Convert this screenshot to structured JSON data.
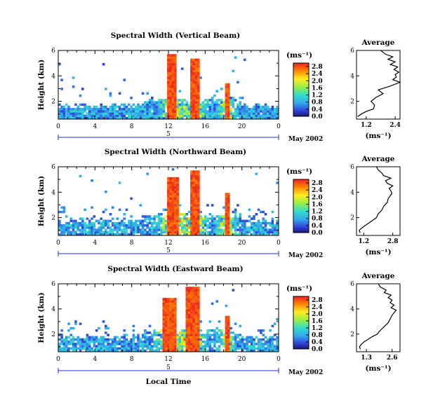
{
  "figure": {
    "xlabel": "Local Time",
    "date_label": "May 2002",
    "day_label": "5",
    "ylabel": "Height (km)",
    "unit_label": "(ms⁻¹)",
    "avg_title": "Average",
    "avg_xlabel": "(ms⁻¹)"
  },
  "chart_data": [
    {
      "type": "heatmap",
      "title": "Spectral Width (Vertical Beam)",
      "xlabel": "Local Time",
      "ylabel": "Height (km)",
      "x_ticks": [
        "0",
        "4",
        "8",
        "12",
        "16",
        "20",
        "0"
      ],
      "y_ticks": [
        "2",
        "4",
        "6"
      ],
      "xlim": [
        0,
        24
      ],
      "ylim": [
        0.6,
        6.0
      ],
      "colorbar": {
        "label": "(ms⁻¹)",
        "ticks": [
          "0.0",
          "0.4",
          "0.8",
          "1.2",
          "1.6",
          "2.0",
          "2.4",
          "2.8"
        ],
        "range": [
          0,
          3.0
        ]
      },
      "regions": [
        {
          "desc": "dense near-ground layer",
          "t": [
            0,
            24
          ],
          "h": [
            0.6,
            1.7
          ],
          "value": 0.8
        },
        {
          "desc": "convective plume",
          "t": [
            12.0,
            13.0
          ],
          "h": [
            0.6,
            5.8
          ],
          "value": 3.0
        },
        {
          "desc": "convective plume",
          "t": [
            14.5,
            15.3
          ],
          "h": [
            0.6,
            5.5
          ],
          "value": 3.0
        },
        {
          "desc": "convective plume",
          "t": [
            18.3,
            18.6
          ],
          "h": [
            0.6,
            3.5
          ],
          "value": 3.0
        }
      ]
    },
    {
      "type": "heatmap",
      "title": "Spectral Width (Northward Beam)",
      "xlabel": "Local Time",
      "ylabel": "Height (km)",
      "x_ticks": [
        "0",
        "4",
        "8",
        "12",
        "16",
        "20",
        "0"
      ],
      "y_ticks": [
        "2",
        "4",
        "6"
      ],
      "xlim": [
        0,
        24
      ],
      "ylim": [
        0.6,
        6.0
      ],
      "colorbar": {
        "label": "(ms⁻¹)",
        "ticks": [
          "0.0",
          "0.4",
          "0.8",
          "1.2",
          "1.6",
          "2.0",
          "2.4",
          "2.8"
        ],
        "range": [
          0,
          3.0
        ]
      },
      "regions": [
        {
          "desc": "boundary layer echoes",
          "t": [
            0,
            24
          ],
          "h": [
            0.6,
            1.8
          ],
          "value": 0.6
        },
        {
          "desc": "convective plume",
          "t": [
            11.8,
            13.2
          ],
          "h": [
            0.6,
            5.3
          ],
          "value": 3.0
        },
        {
          "desc": "convective plume",
          "t": [
            14.3,
            15.5
          ],
          "h": [
            0.6,
            5.9
          ],
          "value": 3.0
        },
        {
          "desc": "convective plume",
          "t": [
            18.2,
            18.6
          ],
          "h": [
            0.6,
            4.0
          ],
          "value": 3.0
        }
      ]
    },
    {
      "type": "heatmap",
      "title": "Spectral Width (Eastward Beam)",
      "xlabel": "Local Time",
      "ylabel": "Height (km)",
      "x_ticks": [
        "0",
        "4",
        "8",
        "12",
        "16",
        "20",
        "0"
      ],
      "y_ticks": [
        "2",
        "4",
        "6"
      ],
      "xlim": [
        0,
        24
      ],
      "ylim": [
        0.6,
        6.0
      ],
      "colorbar": {
        "label": "(ms⁻¹)",
        "ticks": [
          "0.0",
          "0.4",
          "0.8",
          "1.2",
          "1.6",
          "2.0",
          "2.4",
          "2.8"
        ],
        "range": [
          0,
          3.0
        ]
      },
      "regions": [
        {
          "desc": "boundary layer echoes",
          "t": [
            0,
            24
          ],
          "h": [
            0.6,
            1.8
          ],
          "value": 0.6
        },
        {
          "desc": "convective plume",
          "t": [
            11.4,
            12.8
          ],
          "h": [
            0.6,
            5.0
          ],
          "value": 3.0
        },
        {
          "desc": "convective plume",
          "t": [
            13.8,
            15.3
          ],
          "h": [
            0.6,
            5.8
          ],
          "value": 3.0
        },
        {
          "desc": "convective plume",
          "t": [
            18.3,
            18.6
          ],
          "h": [
            0.6,
            3.5
          ],
          "value": 3.0
        }
      ]
    },
    {
      "type": "line",
      "title": "Average",
      "xlabel": "(ms⁻¹)",
      "x_ticks": [
        "1.2",
        "2.4"
      ],
      "y_ticks": [
        "2",
        "4",
        "6"
      ],
      "xlim": [
        0.8,
        2.6
      ],
      "ylim": [
        0.6,
        6.0
      ],
      "x": [
        0.85,
        1.0,
        1.2,
        1.5,
        1.55,
        1.4,
        1.6,
        1.9,
        1.7,
        2.2,
        2.6,
        2.3,
        2.45,
        2.4,
        2.55,
        2.35,
        2.5,
        2.2,
        2.4,
        2.1,
        2.3,
        2.0,
        1.9,
        1.8
      ],
      "y": [
        0.8,
        1.0,
        1.2,
        1.4,
        1.7,
        2.0,
        2.3,
        2.6,
        2.9,
        3.2,
        3.5,
        3.7,
        3.9,
        4.1,
        4.3,
        4.5,
        4.7,
        4.9,
        5.1,
        5.3,
        5.5,
        5.7,
        5.85,
        6.0
      ]
    },
    {
      "type": "line",
      "title": "Average",
      "xlabel": "(ms⁻¹)",
      "x_ticks": [
        "1.2",
        "2.8"
      ],
      "y_ticks": [
        "2",
        "4",
        "6"
      ],
      "xlim": [
        0.8,
        3.2
      ],
      "ylim": [
        0.6,
        6.0
      ],
      "x": [
        1.0,
        0.95,
        1.1,
        1.3,
        1.5,
        1.7,
        1.9,
        2.0,
        2.2,
        2.3,
        2.5,
        2.55,
        2.65,
        2.75,
        2.7,
        2.6,
        2.8,
        2.5,
        2.4,
        2.7,
        2.3,
        2.2,
        2.0,
        1.9
      ],
      "y": [
        0.8,
        1.0,
        1.2,
        1.4,
        1.6,
        1.8,
        2.0,
        2.3,
        2.6,
        2.9,
        3.2,
        3.5,
        3.7,
        3.9,
        4.1,
        4.3,
        4.5,
        4.7,
        4.9,
        5.1,
        5.3,
        5.5,
        5.75,
        6.0
      ]
    },
    {
      "type": "line",
      "title": "Average",
      "xlabel": "(ms⁻¹)",
      "x_ticks": [
        "1.3",
        "2.6"
      ],
      "y_ticks": [
        "2",
        "4",
        "6"
      ],
      "xlim": [
        0.8,
        3.0
      ],
      "ylim": [
        0.6,
        6.0
      ],
      "x": [
        1.0,
        0.95,
        1.05,
        1.2,
        1.4,
        1.6,
        1.85,
        2.0,
        2.2,
        2.4,
        2.5,
        2.6,
        2.7,
        2.8,
        2.55,
        2.7,
        2.5,
        2.6,
        2.4,
        2.55,
        2.2,
        2.3,
        2.0,
        1.9
      ],
      "y": [
        0.8,
        1.0,
        1.2,
        1.4,
        1.6,
        1.8,
        2.0,
        2.3,
        2.6,
        2.9,
        3.2,
        3.5,
        3.7,
        3.9,
        4.1,
        4.3,
        4.5,
        4.7,
        4.9,
        5.1,
        5.3,
        5.5,
        5.75,
        6.0
      ]
    }
  ]
}
